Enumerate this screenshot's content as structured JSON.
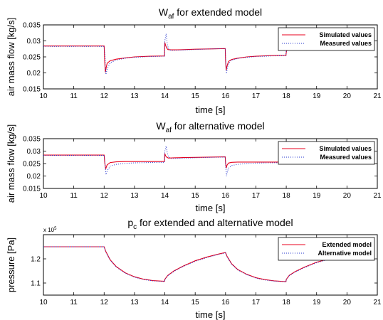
{
  "chart_data": [
    {
      "type": "line",
      "title": "W",
      "title_sub": "af",
      "title_rest": " for extended model",
      "xlabel": "time [s]",
      "ylabel": "air mass flow [kg/s]",
      "xlim": [
        10,
        21
      ],
      "ylim": [
        0.015,
        0.035
      ],
      "xticks": [
        "10",
        "11",
        "12",
        "13",
        "14",
        "15",
        "16",
        "17",
        "18",
        "19",
        "20",
        "21"
      ],
      "yticks": [
        "0.015",
        "0.02",
        "0.025",
        "0.03",
        "0.035"
      ],
      "legend_position": "top-right",
      "colors": {
        "Simulated values": "#e8001c",
        "Measured values": "#2233cc"
      },
      "series": [
        {
          "name": "Simulated values",
          "style": "solid",
          "x": [
            10,
            11,
            12,
            12.02,
            12.04,
            12.07,
            12.1,
            12.2,
            12.4,
            12.7,
            13,
            13.5,
            13.99,
            14.0,
            14.03,
            14.06,
            14.1,
            14.2,
            14.4,
            14.7,
            15,
            15.5,
            15.99,
            16.0,
            16.02,
            16.04,
            16.07,
            16.1,
            16.2,
            16.4,
            16.7,
            17,
            17.5,
            17.99,
            18.0,
            18.03,
            18.1,
            18.3,
            18.6,
            19,
            19.5,
            20
          ],
          "y": [
            0.0284,
            0.0284,
            0.0284,
            0.0235,
            0.0202,
            0.0218,
            0.023,
            0.0238,
            0.0243,
            0.0247,
            0.025,
            0.0252,
            0.0253,
            0.0295,
            0.0285,
            0.0278,
            0.0273,
            0.0272,
            0.0272,
            0.0273,
            0.0274,
            0.0275,
            0.0276,
            0.024,
            0.0208,
            0.0218,
            0.0228,
            0.0236,
            0.0242,
            0.0246,
            0.025,
            0.0252,
            0.0254,
            0.0255,
            0.0264,
            0.0275,
            0.0276,
            0.0278,
            0.028,
            0.0282,
            0.0283,
            0.0284
          ]
        },
        {
          "name": "Measured values",
          "style": "dotted",
          "x": [
            10,
            11,
            12,
            12.03,
            12.06,
            12.1,
            12.2,
            12.4,
            12.7,
            13,
            13.5,
            13.99,
            14.0,
            14.04,
            14.08,
            14.12,
            14.2,
            14.4,
            14.7,
            15,
            15.5,
            15.99,
            16.0,
            16.03,
            16.06,
            16.1,
            16.2,
            16.4,
            16.7,
            17,
            17.5,
            17.99,
            18.0,
            18.05,
            18.1,
            18.3,
            18.6,
            19,
            19.5,
            20
          ],
          "y": [
            0.0283,
            0.0283,
            0.0283,
            0.0248,
            0.0195,
            0.0212,
            0.0232,
            0.024,
            0.0246,
            0.0249,
            0.0251,
            0.0252,
            0.03,
            0.0322,
            0.029,
            0.0275,
            0.027,
            0.0271,
            0.0272,
            0.0273,
            0.0275,
            0.0276,
            0.025,
            0.0198,
            0.0215,
            0.023,
            0.024,
            0.0245,
            0.0249,
            0.0251,
            0.0253,
            0.0254,
            0.0275,
            0.0282,
            0.027,
            0.0276,
            0.028,
            0.0282,
            0.0283,
            0.0283
          ]
        }
      ]
    },
    {
      "type": "line",
      "title": "W",
      "title_sub": "af",
      "title_rest": " for alternative model",
      "xlabel": "time [s]",
      "ylabel": "air mass flow [kg/s]",
      "xlim": [
        10,
        21
      ],
      "ylim": [
        0.015,
        0.035
      ],
      "xticks": [
        "10",
        "11",
        "12",
        "13",
        "14",
        "15",
        "16",
        "17",
        "18",
        "19",
        "20",
        "21"
      ],
      "yticks": [
        "0.015",
        "0.02",
        "0.025",
        "0.03",
        "0.035"
      ],
      "legend_position": "top-right",
      "colors": {
        "Simulated values": "#e8001c",
        "Measured values": "#2233cc"
      },
      "series": [
        {
          "name": "Simulated values",
          "style": "solid",
          "x": [
            10,
            11,
            12,
            12.02,
            12.05,
            12.1,
            12.2,
            12.4,
            12.7,
            13,
            13.5,
            13.99,
            14.0,
            14.03,
            14.07,
            14.12,
            14.3,
            14.6,
            15,
            15.5,
            15.99,
            16.0,
            16.02,
            16.05,
            16.1,
            16.2,
            16.4,
            16.7,
            17,
            17.5,
            17.99,
            18.0,
            18.03,
            18.1,
            18.2,
            18.4,
            18.6,
            18.8,
            18.9
          ],
          "y": [
            0.0284,
            0.0284,
            0.0284,
            0.0255,
            0.0228,
            0.0245,
            0.0254,
            0.0257,
            0.0258,
            0.0258,
            0.0258,
            0.0258,
            0.029,
            0.028,
            0.0275,
            0.0272,
            0.0273,
            0.0274,
            0.0275,
            0.0276,
            0.0277,
            0.0255,
            0.0232,
            0.0244,
            0.0252,
            0.0255,
            0.0256,
            0.0256,
            0.0256,
            0.0256,
            0.0256,
            0.0262,
            0.027,
            0.0268,
            0.0265,
            0.0262,
            0.026,
            0.0258,
            0.0257
          ]
        },
        {
          "name": "Measured values",
          "style": "dotted",
          "x": [
            10,
            11,
            12,
            12.03,
            12.06,
            12.1,
            12.2,
            12.4,
            12.7,
            13,
            13.5,
            13.99,
            14.0,
            14.04,
            14.08,
            14.12,
            14.2,
            14.4,
            14.7,
            15,
            15.5,
            15.99,
            16.0,
            16.03,
            16.06,
            16.1,
            16.2,
            16.4,
            16.7,
            17,
            17.5,
            17.99,
            18.0,
            18.05,
            18.1,
            18.3,
            18.6,
            18.9
          ],
          "y": [
            0.0283,
            0.0283,
            0.0283,
            0.0248,
            0.0205,
            0.022,
            0.024,
            0.0247,
            0.0251,
            0.0253,
            0.0254,
            0.0255,
            0.03,
            0.032,
            0.0292,
            0.0277,
            0.0271,
            0.0271,
            0.0272,
            0.0273,
            0.0275,
            0.0276,
            0.025,
            0.02,
            0.0218,
            0.0232,
            0.0242,
            0.0247,
            0.025,
            0.0252,
            0.0253,
            0.0254,
            0.0275,
            0.028,
            0.0262,
            0.026,
            0.0258,
            0.0257
          ]
        }
      ]
    },
    {
      "type": "line",
      "title": "p",
      "title_sub": "c",
      "title_rest": " for extended and alternative model",
      "xlabel": "time [s]",
      "ylabel": "pressure [Pa]",
      "multiplier": "x 10",
      "multiplier_exp": "5",
      "xlim": [
        10,
        21
      ],
      "ylim": [
        1.05,
        1.3
      ],
      "xticks": [
        "10",
        "11",
        "12",
        "13",
        "14",
        "15",
        "16",
        "17",
        "18",
        "19",
        "20",
        "21"
      ],
      "yticks": [
        "1.1",
        "1.2"
      ],
      "legend_position": "top-right",
      "colors": {
        "Extended model": "#e8001c",
        "Alternative model": "#2233cc"
      },
      "series": [
        {
          "name": "Extended model",
          "style": "solid",
          "x": [
            10,
            11,
            12,
            12.05,
            12.2,
            12.4,
            12.7,
            13,
            13.3,
            13.6,
            13.99,
            14.0,
            14.1,
            14.3,
            14.6,
            15,
            15.4,
            15.8,
            15.99,
            16.0,
            16.05,
            16.2,
            16.4,
            16.7,
            17,
            17.3,
            17.6,
            17.99,
            18.0,
            18.1,
            18.3,
            18.6,
            19,
            19.4,
            19.8,
            20
          ],
          "y": [
            1.25,
            1.25,
            1.25,
            1.232,
            1.196,
            1.168,
            1.142,
            1.126,
            1.116,
            1.11,
            1.107,
            1.115,
            1.132,
            1.15,
            1.17,
            1.192,
            1.208,
            1.221,
            1.226,
            1.226,
            1.21,
            1.18,
            1.156,
            1.136,
            1.122,
            1.114,
            1.109,
            1.106,
            1.115,
            1.132,
            1.148,
            1.166,
            1.186,
            1.2,
            1.21,
            1.215
          ]
        },
        {
          "name": "Alternative model",
          "style": "dotted",
          "x": [
            10,
            11,
            12,
            12.05,
            12.2,
            12.4,
            12.7,
            13,
            13.3,
            13.6,
            13.99,
            14.0,
            14.1,
            14.3,
            14.6,
            15,
            15.4,
            15.8,
            15.99,
            16.0,
            16.05,
            16.2,
            16.4,
            16.7,
            17,
            17.3,
            17.6,
            17.99,
            18.0,
            18.1,
            18.3,
            18.6,
            19,
            19.4,
            19.8,
            20
          ],
          "y": [
            1.25,
            1.25,
            1.25,
            1.23,
            1.194,
            1.166,
            1.14,
            1.124,
            1.114,
            1.109,
            1.106,
            1.114,
            1.13,
            1.148,
            1.168,
            1.19,
            1.206,
            1.219,
            1.224,
            1.224,
            1.208,
            1.178,
            1.154,
            1.134,
            1.12,
            1.112,
            1.108,
            1.105,
            1.114,
            1.13,
            1.146,
            1.164,
            1.184,
            1.198,
            1.208,
            1.213
          ]
        }
      ]
    }
  ]
}
